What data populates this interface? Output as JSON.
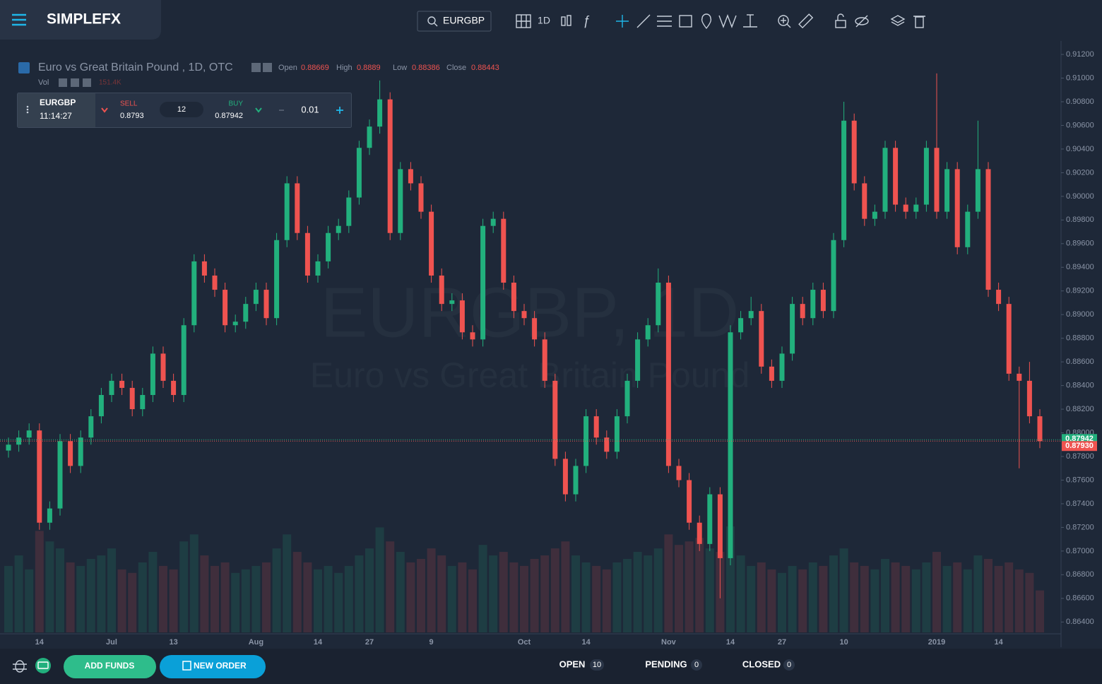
{
  "header": {
    "logo": "SIMPLEFX",
    "symbol_search": "EURGBP",
    "interval": "1D"
  },
  "legend": {
    "title": "Euro vs Great Britain Pound , 1D, OTC",
    "open_label": "Open",
    "open": 0.88669,
    "high_label": "High",
    "high": 0.8889,
    "low_label": "Low",
    "low": 0.88386,
    "close_label": "Close",
    "close": 0.88443,
    "volume_label": "Vol",
    "volume": "151.4K"
  },
  "trade_panel": {
    "symbol": "EURGBP",
    "time": "11:14:27",
    "sell_label": "SELL",
    "sell": 0.8793,
    "spread": 12,
    "buy_label": "BUY",
    "buy": 0.87942,
    "lot": 0.01
  },
  "footer": {
    "add_funds": "ADD FUNDS",
    "new_order": "NEW ORDER",
    "open_label": "OPEN",
    "open_count": 10,
    "pending_label": "PENDING",
    "pending_count": 0,
    "closed_label": "CLOSED",
    "closed_count": 0
  },
  "chart_data": {
    "type": "candlestick",
    "title": "EURGBP, 1D",
    "subtitle": "Euro vs Great Britain Pound",
    "up_color": "#22b07d",
    "down_color": "#ef5350",
    "categories": [
      null,
      null,
      null,
      "14",
      null,
      null,
      null,
      null,
      null,
      null,
      "Jul",
      null,
      null,
      null,
      null,
      null,
      "13",
      null,
      null,
      null,
      null,
      null,
      null,
      null,
      "Aug",
      null,
      null,
      null,
      null,
      null,
      "14",
      null,
      null,
      null,
      null,
      "27",
      null,
      null,
      null,
      null,
      null,
      "9",
      null,
      null,
      null,
      null,
      null,
      null,
      null,
      null,
      "Oct",
      null,
      null,
      null,
      null,
      null,
      "14",
      null,
      null,
      null,
      null,
      null,
      null,
      null,
      "Nov",
      null,
      null,
      null,
      null,
      null,
      "14",
      null,
      null,
      null,
      null,
      "27",
      null,
      null,
      null,
      null,
      null,
      "10",
      null,
      null,
      null,
      null,
      null,
      null,
      null,
      null,
      "2019",
      null,
      null,
      null,
      null,
      null,
      "14",
      null,
      null,
      null,
      null
    ],
    "open": [
      0.8785,
      0.879,
      0.8796,
      0.8802,
      0.8724,
      0.8736,
      0.8793,
      0.8772,
      0.8796,
      0.8814,
      0.8832,
      0.8844,
      0.8838,
      0.882,
      0.8832,
      0.8867,
      0.8844,
      0.8832,
      0.8891,
      0.8945,
      0.8933,
      0.8921,
      0.8891,
      0.8894,
      0.8909,
      0.8921,
      0.8897,
      0.8963,
      0.9011,
      0.8969,
      0.8933,
      0.8945,
      0.8969,
      0.8975,
      0.8999,
      0.9041,
      0.9059,
      0.9082,
      0.8969,
      0.9023,
      0.9011,
      0.8987,
      0.8933,
      0.8909,
      0.8912,
      0.8885,
      0.8879,
      0.8975,
      0.8981,
      0.8927,
      0.8903,
      0.8897,
      0.8879,
      0.8844,
      0.8778,
      0.8748,
      0.8772,
      0.8814,
      0.8796,
      0.8784,
      0.8814,
      0.8844,
      0.8879,
      0.8891,
      0.8927,
      0.8772,
      0.876,
      0.8724,
      0.8706,
      0.8748,
      0.8694,
      0.8885,
      0.8897,
      0.8903,
      0.8856,
      0.8844,
      0.8867,
      0.8909,
      0.8897,
      0.8921,
      0.8903,
      0.8963,
      0.9064,
      0.9011,
      0.8981,
      0.8987,
      0.9041,
      0.8993,
      0.8987,
      0.8993,
      0.9041,
      0.8987,
      0.9023,
      0.8957,
      0.8987,
      0.9023,
      0.8921,
      0.8909,
      0.885,
      0.8844,
      0.8814
    ],
    "high": [
      0.8796,
      0.8802,
      0.8808,
      0.8808,
      0.8742,
      0.8799,
      0.8799,
      0.8802,
      0.882,
      0.8838,
      0.885,
      0.885,
      0.8844,
      0.8838,
      0.8873,
      0.8873,
      0.885,
      0.8897,
      0.8951,
      0.8951,
      0.8939,
      0.8927,
      0.89,
      0.8915,
      0.8927,
      0.8927,
      0.8969,
      0.9017,
      0.9017,
      0.8975,
      0.8951,
      0.8975,
      0.8981,
      0.9005,
      0.9047,
      0.9065,
      0.9098,
      0.9088,
      0.9029,
      0.9029,
      0.9017,
      0.8993,
      0.8939,
      0.8918,
      0.8918,
      0.8891,
      0.8981,
      0.8987,
      0.8987,
      0.8933,
      0.8909,
      0.8903,
      0.8885,
      0.885,
      0.8784,
      0.8778,
      0.882,
      0.882,
      0.8802,
      0.882,
      0.885,
      0.8885,
      0.8897,
      0.8939,
      0.8933,
      0.8778,
      0.8766,
      0.873,
      0.8754,
      0.8754,
      0.8891,
      0.8903,
      0.8915,
      0.8909,
      0.8862,
      0.8873,
      0.8915,
      0.8915,
      0.8927,
      0.8927,
      0.8969,
      0.908,
      0.907,
      0.9017,
      0.8993,
      0.9047,
      0.9047,
      0.8999,
      0.8999,
      0.9047,
      0.9104,
      0.9029,
      0.9029,
      0.8993,
      0.9064,
      0.9029,
      0.8927,
      0.8915,
      0.8856,
      0.886,
      0.882
    ],
    "low": [
      0.8779,
      0.8784,
      0.879,
      0.8718,
      0.8718,
      0.873,
      0.8766,
      0.8766,
      0.879,
      0.8808,
      0.8826,
      0.8832,
      0.8814,
      0.8814,
      0.8826,
      0.8838,
      0.8826,
      0.8826,
      0.8885,
      0.8927,
      0.8915,
      0.8885,
      0.8885,
      0.8888,
      0.8903,
      0.8891,
      0.8891,
      0.8957,
      0.8963,
      0.8927,
      0.8927,
      0.8939,
      0.8963,
      0.8969,
      0.8993,
      0.9035,
      0.9053,
      0.8963,
      0.8963,
      0.9005,
      0.8981,
      0.8927,
      0.8903,
      0.8903,
      0.8879,
      0.8873,
      0.8873,
      0.8969,
      0.8921,
      0.8897,
      0.8891,
      0.8873,
      0.8838,
      0.8772,
      0.8742,
      0.8742,
      0.8766,
      0.879,
      0.8778,
      0.8778,
      0.8808,
      0.8838,
      0.8873,
      0.8885,
      0.8766,
      0.8754,
      0.8718,
      0.87,
      0.87,
      0.866,
      0.8688,
      0.8879,
      0.8891,
      0.885,
      0.8838,
      0.8838,
      0.8861,
      0.8891,
      0.8891,
      0.8897,
      0.8897,
      0.8957,
      0.9005,
      0.8975,
      0.8975,
      0.8981,
      0.8987,
      0.8981,
      0.8981,
      0.8987,
      0.8981,
      0.8981,
      0.8951,
      0.8951,
      0.8981,
      0.8915,
      0.8903,
      0.8844,
      0.877,
      0.8808,
      0.8787
    ],
    "close": [
      0.879,
      0.8796,
      0.8802,
      0.8724,
      0.8736,
      0.8793,
      0.8772,
      0.8796,
      0.8814,
      0.8832,
      0.8844,
      0.8838,
      0.882,
      0.8832,
      0.8867,
      0.8844,
      0.8832,
      0.8891,
      0.8945,
      0.8933,
      0.8921,
      0.8891,
      0.8894,
      0.8909,
      0.8921,
      0.8897,
      0.8963,
      0.9011,
      0.8969,
      0.8933,
      0.8945,
      0.8969,
      0.8975,
      0.8999,
      0.9041,
      0.9059,
      0.9082,
      0.8969,
      0.9023,
      0.9011,
      0.8987,
      0.8933,
      0.8909,
      0.8912,
      0.8885,
      0.8879,
      0.8975,
      0.8981,
      0.8927,
      0.8903,
      0.8897,
      0.8879,
      0.8844,
      0.8778,
      0.8748,
      0.8772,
      0.8814,
      0.8796,
      0.8784,
      0.8814,
      0.8844,
      0.8879,
      0.8891,
      0.8927,
      0.8772,
      0.876,
      0.8724,
      0.8706,
      0.8748,
      0.8694,
      0.8885,
      0.8897,
      0.8903,
      0.8856,
      0.8844,
      0.8867,
      0.8909,
      0.8897,
      0.8921,
      0.8903,
      0.8963,
      0.9064,
      0.9011,
      0.8981,
      0.8987,
      0.9041,
      0.8993,
      0.8987,
      0.8993,
      0.9041,
      0.8987,
      0.9023,
      0.8957,
      0.8987,
      0.9023,
      0.8921,
      0.8909,
      0.885,
      0.8844,
      0.8814,
      0.8793
    ],
    "volume": [
      95,
      110,
      90,
      145,
      130,
      120,
      100,
      95,
      105,
      110,
      120,
      90,
      85,
      100,
      115,
      95,
      90,
      130,
      140,
      110,
      95,
      100,
      85,
      90,
      95,
      100,
      120,
      140,
      115,
      100,
      90,
      95,
      85,
      95,
      110,
      120,
      150,
      130,
      115,
      100,
      105,
      120,
      110,
      95,
      100,
      90,
      125,
      110,
      115,
      100,
      95,
      105,
      110,
      120,
      130,
      110,
      100,
      95,
      90,
      100,
      105,
      115,
      110,
      120,
      140,
      125,
      130,
      135,
      120,
      115,
      151.4,
      110,
      95,
      100,
      90,
      85,
      95,
      90,
      100,
      95,
      110,
      120,
      100,
      95,
      90,
      105,
      100,
      95,
      90,
      100,
      115,
      95,
      100,
      90,
      110,
      105,
      95,
      100,
      90,
      85,
      60
    ],
    "ylim": [
      0.863,
      0.9129
    ],
    "yticks": [
      {
        "value": 0.912,
        "label": "0.91200"
      },
      {
        "value": 0.91,
        "label": "0.91000"
      },
      {
        "value": 0.908,
        "label": "0.90800"
      },
      {
        "value": 0.906,
        "label": "0.90600"
      },
      {
        "value": 0.904,
        "label": "0.90400"
      },
      {
        "value": 0.902,
        "label": "0.90200"
      },
      {
        "value": 0.9,
        "label": "0.90000"
      },
      {
        "value": 0.898,
        "label": "0.89800"
      },
      {
        "value": 0.896,
        "label": "0.89600"
      },
      {
        "value": 0.894,
        "label": "0.89400"
      },
      {
        "value": 0.892,
        "label": "0.89200"
      },
      {
        "value": 0.89,
        "label": "0.89000"
      },
      {
        "value": 0.888,
        "label": "0.88800"
      },
      {
        "value": 0.886,
        "label": "0.88600"
      },
      {
        "value": 0.884,
        "label": "0.88400"
      },
      {
        "value": 0.882,
        "label": "0.88200"
      },
      {
        "value": 0.88,
        "label": "0.88000"
      },
      {
        "value": 0.878,
        "label": "0.87800"
      },
      {
        "value": 0.876,
        "label": "0.87600"
      },
      {
        "value": 0.874,
        "label": "0.87400"
      },
      {
        "value": 0.872,
        "label": "0.87200"
      },
      {
        "value": 0.87,
        "label": "0.87000"
      },
      {
        "value": 0.868,
        "label": "0.86800"
      },
      {
        "value": 0.866,
        "label": "0.86600"
      },
      {
        "value": 0.864,
        "label": "0.86400"
      }
    ],
    "ask_price": 0.87942,
    "bid_price": {
      "value": 0.8793,
      "label": "0.87930"
    }
  }
}
